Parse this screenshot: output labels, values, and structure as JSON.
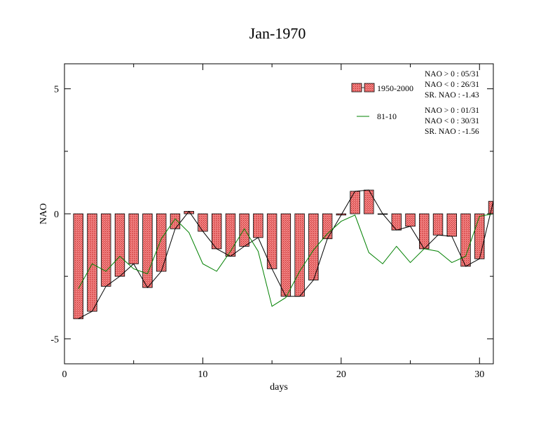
{
  "chart_data": {
    "type": "bar",
    "title": "Jan-1970",
    "xlabel": "days",
    "ylabel": "NAO",
    "xlim": [
      0,
      31
    ],
    "ylim": [
      -6,
      6
    ],
    "x_ticks": [
      0,
      10,
      20,
      30
    ],
    "y_ticks": [
      5,
      0,
      -5
    ],
    "y_tick_labels": [
      "5",
      "0",
      "-5"
    ],
    "grid": false,
    "legend_position": "top-right",
    "x": [
      1,
      2,
      3,
      4,
      5,
      6,
      7,
      8,
      9,
      10,
      11,
      12,
      13,
      14,
      15,
      16,
      17,
      18,
      19,
      20,
      21,
      22,
      23,
      24,
      25,
      26,
      27,
      28,
      29,
      30,
      31
    ],
    "series": [
      {
        "name": "1950-2000",
        "kind": "bar",
        "fill": "#f08080",
        "values": [
          -4.2,
          -3.9,
          -2.9,
          -2.5,
          -2.0,
          -2.95,
          -2.3,
          -0.6,
          0.1,
          -0.7,
          -1.4,
          -1.7,
          -1.3,
          -0.95,
          -2.2,
          -3.3,
          -3.3,
          -2.65,
          -1.0,
          -0.05,
          0.9,
          0.95,
          0.0,
          -0.65,
          -0.5,
          -1.4,
          -0.85,
          -0.9,
          -2.1,
          -1.8,
          0.5
        ],
        "stats": [
          "NAO > 0 : 05/31",
          "NAO < 0 : 26/31",
          "SR. NAO : -1.43"
        ]
      },
      {
        "name": "81-10",
        "kind": "line",
        "color": "#008000",
        "values": [
          -3.0,
          -2.0,
          -2.3,
          -1.7,
          -2.2,
          -2.4,
          -1.0,
          -0.2,
          -0.75,
          -2.0,
          -2.3,
          -1.5,
          -0.6,
          -1.5,
          -3.7,
          -3.35,
          -2.3,
          -1.45,
          -0.8,
          -0.3,
          -0.05,
          -1.55,
          -2.0,
          -1.3,
          -1.95,
          -1.4,
          -1.5,
          -1.95,
          -1.7,
          -0.1,
          0.0
        ],
        "stats": [
          "NAO > 0 : 01/31",
          "NAO < 0 : 30/31",
          "SR. NAO : -1.56"
        ]
      }
    ],
    "bar_top_line_color": "#000000"
  }
}
